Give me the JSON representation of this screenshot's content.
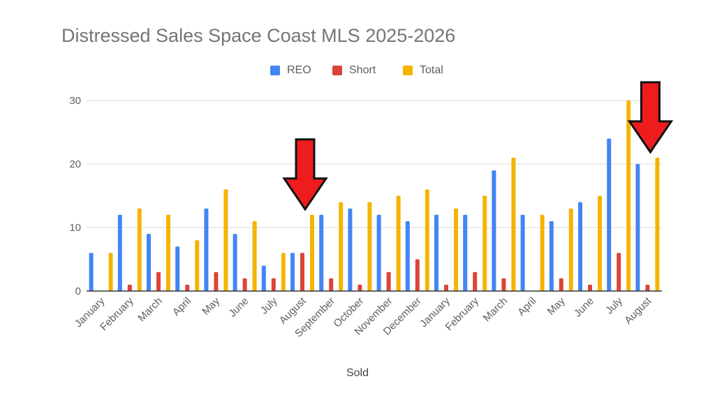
{
  "chart_data": {
    "type": "bar",
    "title": "Distressed Sales Space Coast MLS 2025-2026",
    "xlabel": "Sold",
    "ylabel": "",
    "ylim": [
      0,
      30
    ],
    "yticks": [
      0,
      10,
      20,
      30
    ],
    "grid": true,
    "legend_position": "top",
    "categories": [
      "January",
      "February",
      "March",
      "April",
      "May",
      "June",
      "July",
      "August",
      "September",
      "October",
      "November",
      "December",
      "January",
      "February",
      "March",
      "April",
      "May",
      "June",
      "July",
      "August"
    ],
    "series": [
      {
        "name": "REO",
        "color": "#4285f4",
        "values": [
          6,
          12,
          9,
          7,
          13,
          9,
          4,
          6,
          12,
          13,
          12,
          11,
          12,
          12,
          19,
          12,
          11,
          14,
          24,
          20
        ]
      },
      {
        "name": "Short",
        "color": "#db4437",
        "values": [
          0,
          1,
          3,
          1,
          3,
          2,
          2,
          6,
          2,
          1,
          3,
          5,
          1,
          3,
          2,
          0,
          2,
          1,
          6,
          1
        ]
      },
      {
        "name": "Total",
        "color": "#f4b400",
        "values": [
          6,
          13,
          12,
          8,
          16,
          11,
          6,
          12,
          14,
          14,
          15,
          16,
          13,
          15,
          21,
          12,
          13,
          15,
          30,
          21
        ]
      }
    ],
    "annotations": [
      {
        "type": "arrow",
        "color": "#ee1c1c",
        "category_index": 7
      },
      {
        "type": "arrow",
        "color": "#ee1c1c",
        "category_index": 19
      }
    ]
  }
}
